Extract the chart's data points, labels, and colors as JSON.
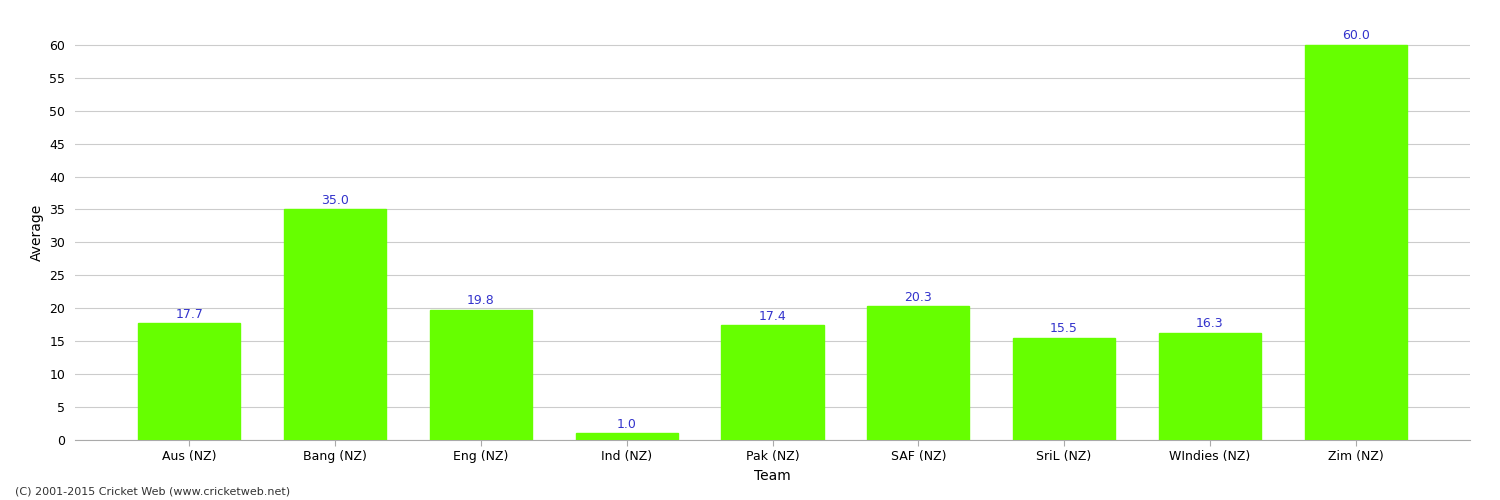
{
  "categories": [
    "Aus (NZ)",
    "Bang (NZ)",
    "Eng (NZ)",
    "Ind (NZ)",
    "Pak (NZ)",
    "SAF (NZ)",
    "SriL (NZ)",
    "WIndies (NZ)",
    "Zim (NZ)"
  ],
  "values": [
    17.7,
    35.0,
    19.8,
    1.0,
    17.4,
    20.3,
    15.5,
    16.3,
    60.0
  ],
  "bar_color": "#66ff00",
  "bar_edge_color": "#66ff00",
  "label_color": "#3333cc",
  "xlabel": "Team",
  "ylabel": "Average",
  "ylim": [
    0,
    63
  ],
  "yticks": [
    0,
    5,
    10,
    15,
    20,
    25,
    30,
    35,
    40,
    45,
    50,
    55,
    60
  ],
  "background_color": "#ffffff",
  "grid_color": "#cccccc",
  "label_fontsize": 9,
  "axis_label_fontsize": 10,
  "tick_fontsize": 9,
  "footnote": "(C) 2001-2015 Cricket Web (www.cricketweb.net)"
}
